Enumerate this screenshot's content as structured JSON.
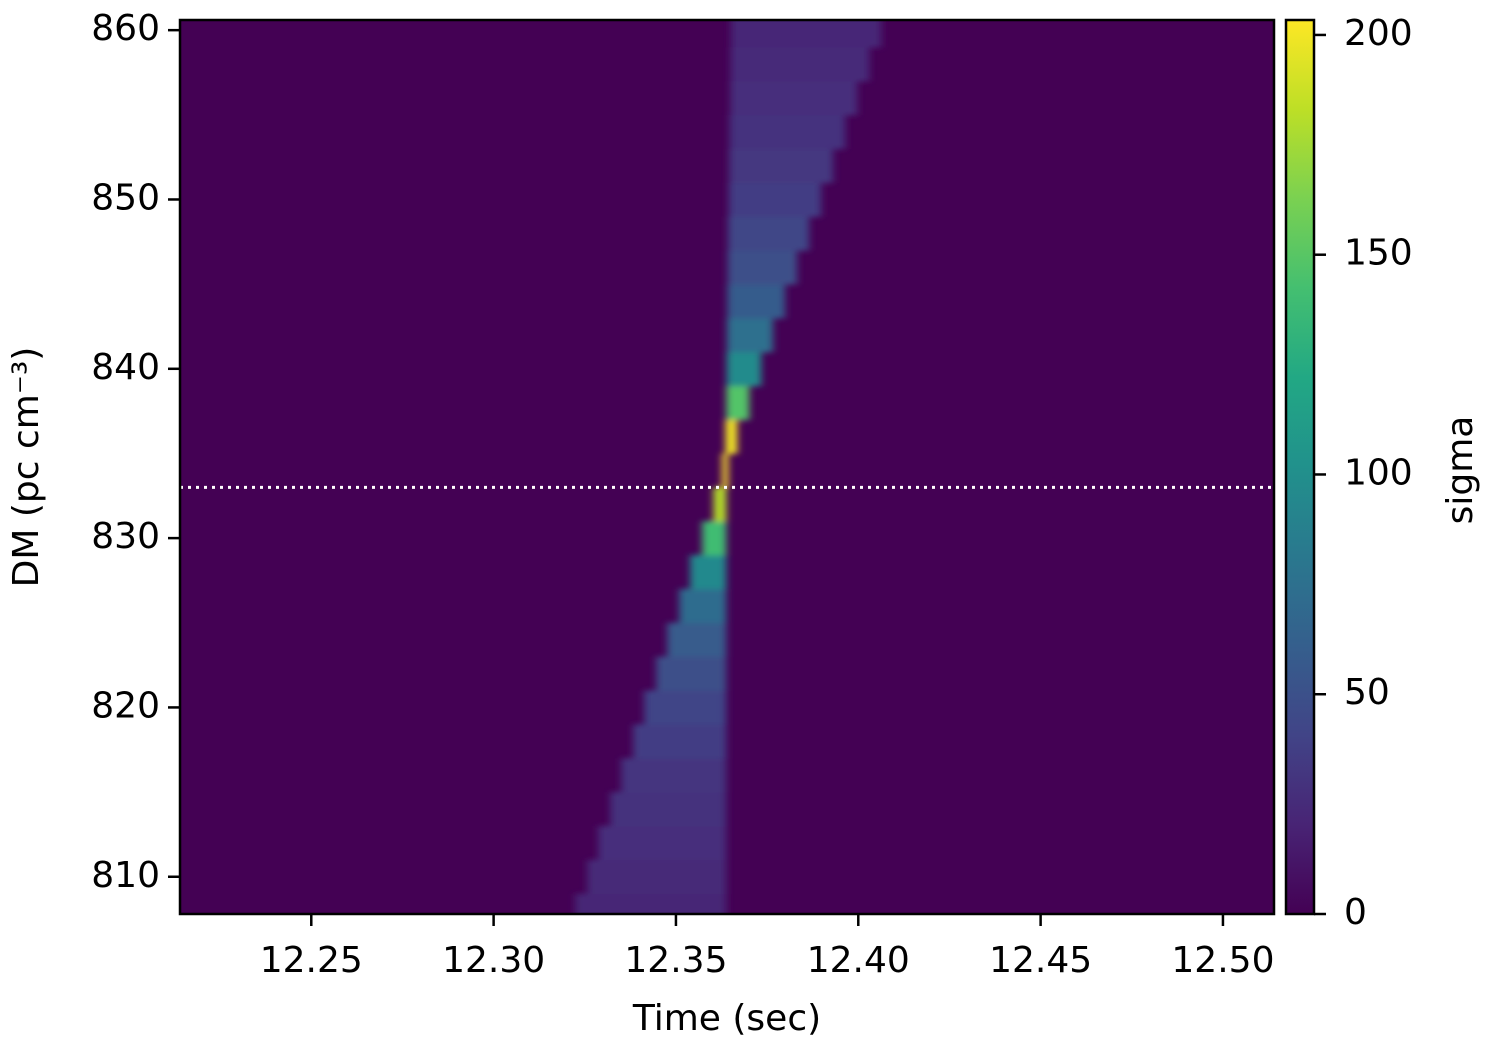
{
  "chart_data": {
    "type": "heatmap",
    "xlabel": "Time (sec)",
    "ylabel": "DM (pc cm⁻³)",
    "xlim": [
      12.214,
      12.514
    ],
    "xticks": [
      12.25,
      {
        "value": 12.3,
        "label": "12.30"
      },
      12.35,
      {
        "value": 12.4,
        "label": "12.40"
      },
      12.45,
      {
        "value": 12.5,
        "label": "12.50"
      }
    ],
    "ylim": [
      807.8,
      860.6
    ],
    "yticks": [
      810,
      820,
      830,
      840,
      850,
      860
    ],
    "cmap": "viridis",
    "clim": [
      0,
      203.4
    ],
    "cticks": [
      0,
      50,
      100,
      150,
      200
    ],
    "colorbar_label": "sigma",
    "background": 0,
    "rows": {
      "dm": [
        808,
        810,
        812,
        814,
        816,
        818,
        820,
        822,
        824,
        826,
        828,
        830,
        832,
        834,
        836,
        838,
        840,
        842,
        844,
        846,
        848,
        850,
        852,
        854,
        856,
        858,
        860
      ],
      "t_start": [
        12.3224,
        12.3257,
        12.3287,
        12.332,
        12.335,
        12.3383,
        12.3413,
        12.3446,
        12.3476,
        12.3509,
        12.3539,
        12.3572,
        12.3603,
        12.3627,
        12.3636,
        12.3638,
        12.3639,
        12.364,
        12.3641,
        12.3642,
        12.3643,
        12.3645,
        12.3646,
        12.3647,
        12.3649,
        12.365,
        12.3651
      ],
      "t_end": [
        12.3638,
        12.3638,
        12.3638,
        12.3638,
        12.3638,
        12.3638,
        12.3638,
        12.3638,
        12.3638,
        12.3638,
        12.3638,
        12.3638,
        12.3638,
        12.3643,
        12.3668,
        12.3701,
        12.3734,
        12.3766,
        12.3799,
        12.3832,
        12.3865,
        12.3898,
        12.3931,
        12.3964,
        12.3997,
        12.403,
        12.4063
      ],
      "values": [
        22,
        24,
        27,
        29,
        32,
        37,
        41,
        49,
        58,
        72,
        95,
        140,
        180,
        203,
        200,
        148,
        97,
        74,
        59,
        49,
        42,
        37,
        33,
        30,
        27,
        25,
        23
      ]
    },
    "hline": 833,
    "hline_color": "#ffffff"
  }
}
